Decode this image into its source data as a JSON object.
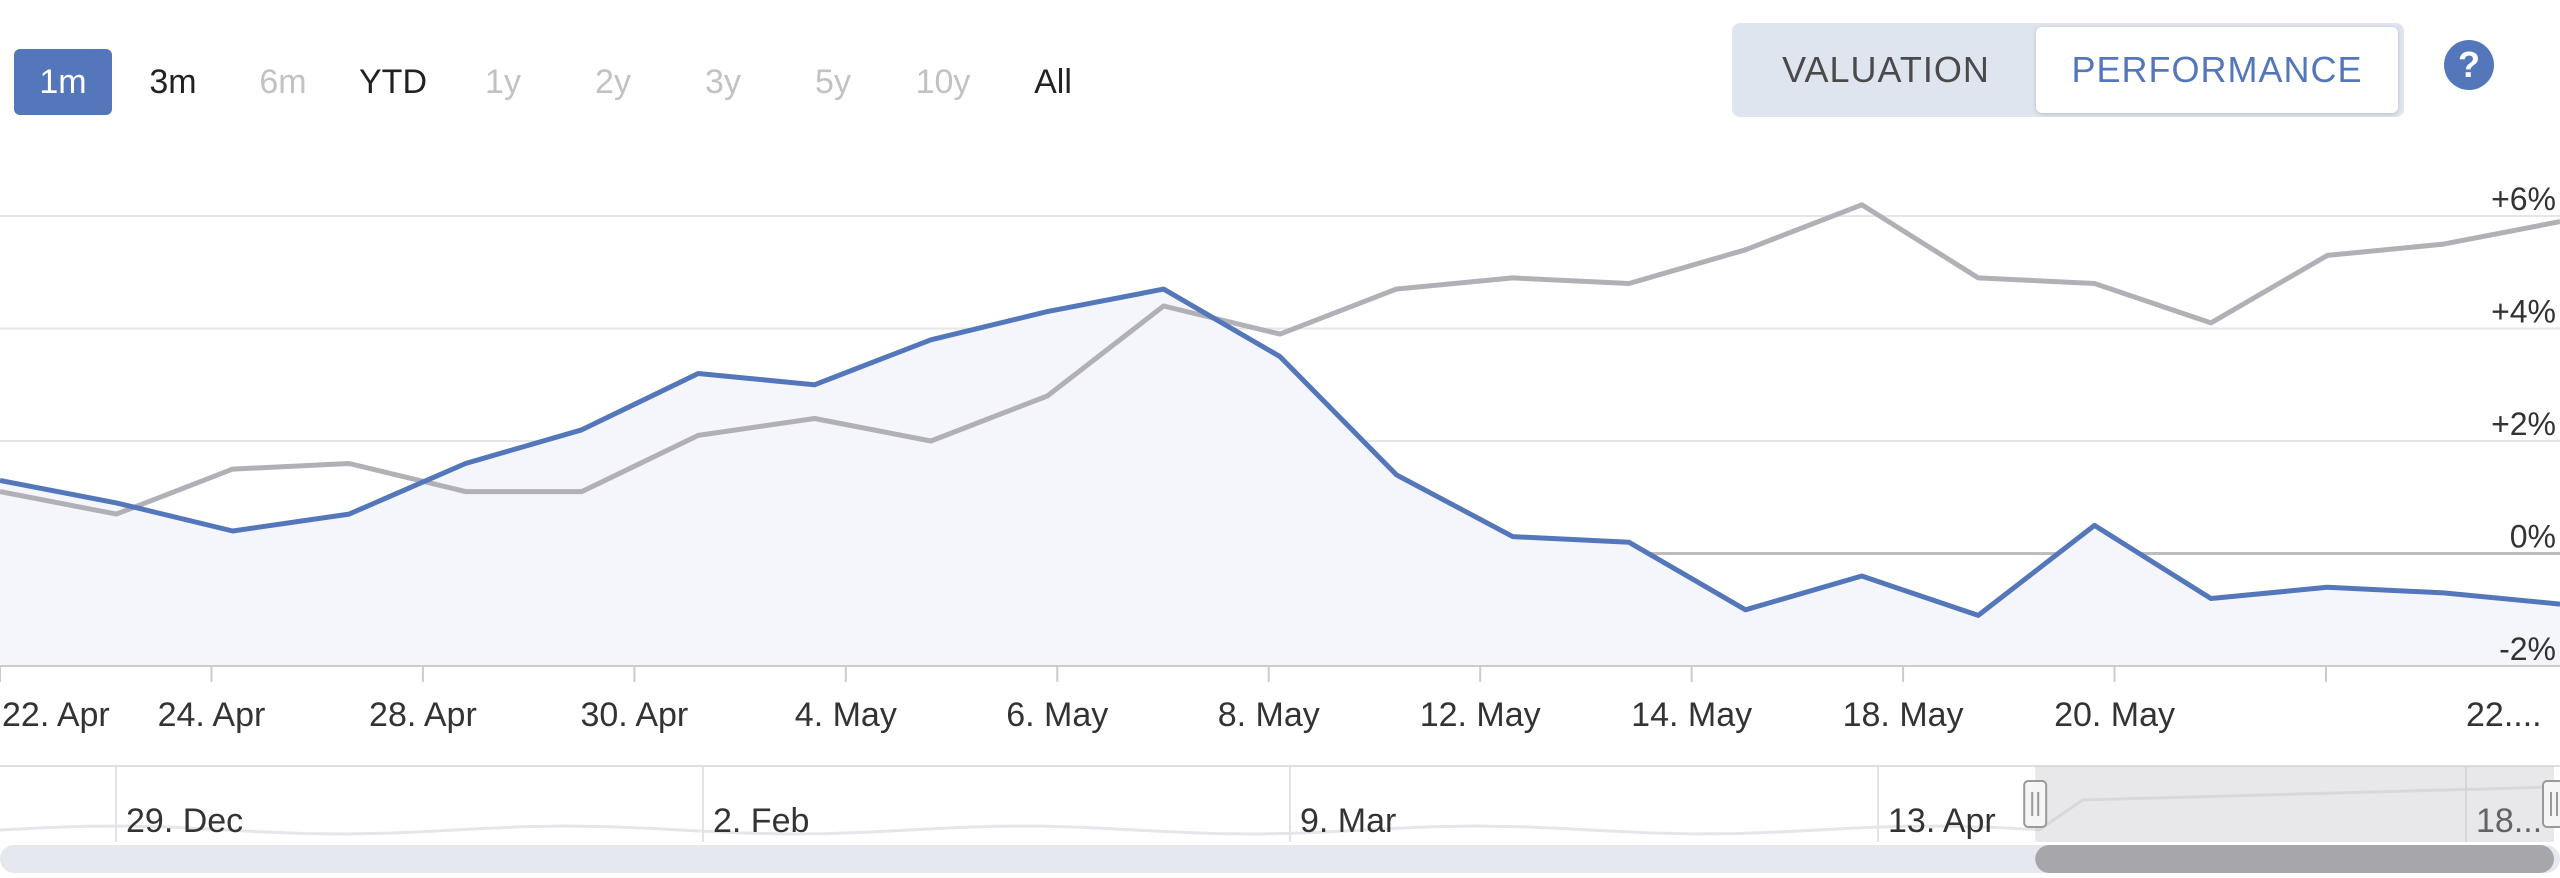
{
  "range_selector": {
    "buttons": [
      {
        "label": "1m",
        "state": "active"
      },
      {
        "label": "3m",
        "state": "enabled"
      },
      {
        "label": "6m",
        "state": "disabled"
      },
      {
        "label": "YTD",
        "state": "enabled"
      },
      {
        "label": "1y",
        "state": "disabled"
      },
      {
        "label": "2y",
        "state": "disabled"
      },
      {
        "label": "3y",
        "state": "disabled"
      },
      {
        "label": "5y",
        "state": "disabled"
      },
      {
        "label": "10y",
        "state": "disabled"
      },
      {
        "label": "All",
        "state": "enabled"
      }
    ]
  },
  "mode_toggle": {
    "valuation_label": "VALUATION",
    "performance_label": "PERFORMANCE",
    "selected": "PERFORMANCE"
  },
  "help": {
    "label": "?",
    "icon": "question-circle-icon"
  },
  "colors": {
    "accent": "#5477bb",
    "series_primary": "#5477bb",
    "series_benchmark": "#b0b0b6",
    "area_fill": "#f4f6fb",
    "grid": "#e6e6e6",
    "zero_line": "#bdbdbd"
  },
  "chart_data": {
    "type": "line",
    "title": "",
    "xlabel": "",
    "ylabel": "",
    "grid": true,
    "legend": "none",
    "ylim": [
      -2,
      6
    ],
    "y_ticks": [
      "+6%",
      "+4%",
      "+2%",
      "0%",
      "-2%"
    ],
    "y_tick_values": [
      6,
      4,
      2,
      0,
      -2
    ],
    "x_tick_labels": [
      "22. Apr",
      "24. Apr",
      "28. Apr",
      "30. Apr",
      "4. May",
      "6. May",
      "8. May",
      "12. May",
      "14. May",
      "18. May",
      "20. May",
      "22...."
    ],
    "series": [
      {
        "values": [
          1.3,
          0.9,
          0.4,
          0.7,
          1.6,
          2.2,
          3.2,
          3.0,
          3.8,
          4.3,
          4.7,
          3.5,
          1.4,
          0.3,
          0.2,
          -1.0,
          -0.4,
          -1.1,
          0.5,
          -0.8,
          -0.6,
          -0.7,
          -0.9
        ],
        "fill_below": true
      },
      {
        "values": [
          1.1,
          0.7,
          1.5,
          1.6,
          1.1,
          1.1,
          2.1,
          2.4,
          2.0,
          2.8,
          4.4,
          3.9,
          4.7,
          4.9,
          4.8,
          5.4,
          6.2,
          4.9,
          4.8,
          4.1,
          5.3,
          5.5,
          5.9
        ]
      }
    ],
    "navigator": {
      "labels": [
        "29. Dec",
        "2. Feb",
        "9. Mar",
        "13. Apr",
        "18..."
      ],
      "selected_window": [
        0.795,
        1.0
      ]
    }
  }
}
